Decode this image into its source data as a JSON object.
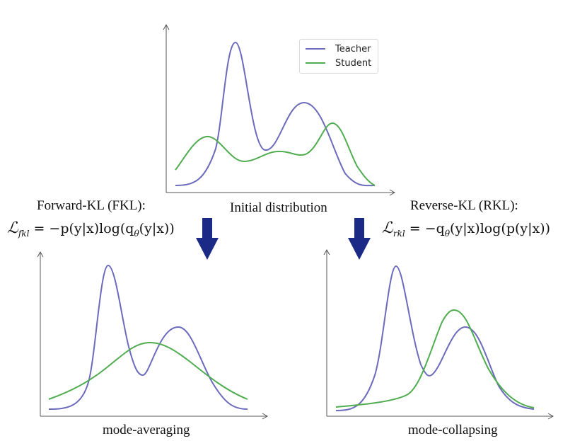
{
  "colors": {
    "teacher": "#6b6bbd",
    "student": "#4fad4f",
    "arrow": "#1a2a86",
    "axis": "#555555"
  },
  "legend": {
    "teacher_label": "Teacher",
    "student_label": "Student"
  },
  "top": {
    "caption": "Initial distribution"
  },
  "left": {
    "title": "Forward-KL (FKL):",
    "formula_script": "ℒ",
    "formula_sub": "fkl",
    "formula_rhs": " = −p(y|x)log(q",
    "formula_theta": "θ",
    "formula_tail": "(y|x))",
    "caption": "mode-averaging"
  },
  "right": {
    "title": "Reverse-KL (RKL):",
    "formula_script": "ℒ",
    "formula_sub": "rkl",
    "formula_rhs": " = −q",
    "formula_theta": "θ",
    "formula_tail": "(y|x)log(p(y|x))",
    "caption": "mode-collapsing"
  },
  "arrow_icons": [
    "down-arrow-icon",
    "down-arrow-icon"
  ]
}
